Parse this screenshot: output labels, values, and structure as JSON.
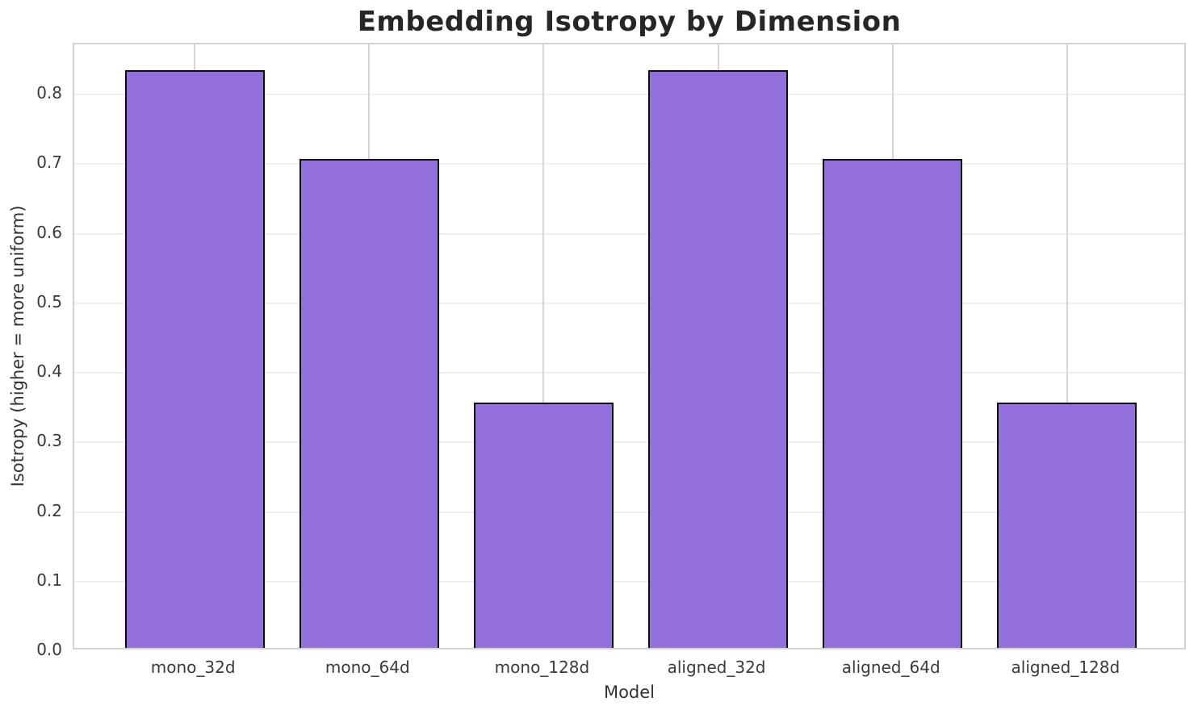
{
  "title": "Embedding Isotropy by Dimension",
  "chart_data": {
    "type": "bar",
    "title": "Embedding Isotropy by Dimension",
    "xlabel": "Model",
    "ylabel": "Isotropy (higher = more uniform)",
    "categories": [
      "mono_32d",
      "mono_64d",
      "mono_128d",
      "aligned_32d",
      "aligned_64d",
      "aligned_128d"
    ],
    "values": [
      0.83,
      0.703,
      0.352,
      0.83,
      0.703,
      0.352
    ],
    "ylim": [
      0,
      0.872
    ],
    "yticks": [
      0.0,
      0.1,
      0.2,
      0.3,
      0.4,
      0.5,
      0.6,
      0.7,
      0.8
    ],
    "ytick_labels": [
      "0.0",
      "0.1",
      "0.2",
      "0.3",
      "0.4",
      "0.5",
      "0.6",
      "0.7",
      "0.8"
    ],
    "grid": true,
    "legend_position": "none",
    "bar_color": "#9370DB",
    "bar_edge_color": "#0a0a0a",
    "grid_color_horizontal": "#efefef",
    "grid_color_vertical": "#d6d6d6",
    "spine_color": "#d2d2d2",
    "title_color": "#262626",
    "tick_label_color": "#3a3a3a"
  }
}
